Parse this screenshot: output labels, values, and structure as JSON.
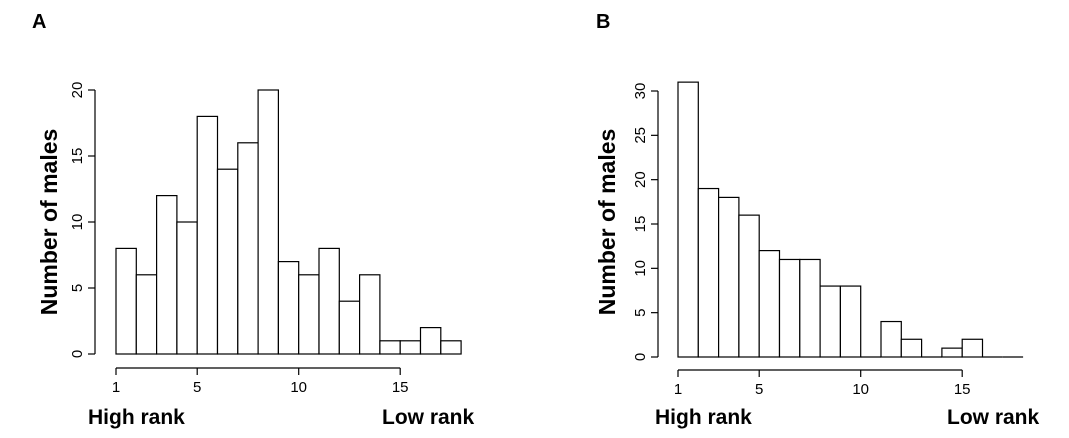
{
  "chart_data": [
    {
      "type": "bar",
      "panel_label": "A",
      "ylabel": "Number of males",
      "x_start_label": "High rank",
      "x_end_label": "Low rank",
      "x": [
        1,
        2,
        3,
        4,
        5,
        6,
        7,
        8,
        9,
        10,
        11,
        12,
        13,
        14,
        15,
        16,
        17
      ],
      "values": [
        8,
        6,
        12,
        10,
        18,
        14,
        16,
        20,
        7,
        6,
        8,
        4,
        6,
        1,
        1,
        2,
        1
      ],
      "xlim": [
        1,
        18
      ],
      "ylim": [
        0,
        20
      ],
      "xticks": [
        1,
        5,
        10,
        15
      ],
      "yticks": [
        0,
        5,
        10,
        15,
        20
      ],
      "grid": false
    },
    {
      "type": "bar",
      "panel_label": "B",
      "ylabel": "Number of males",
      "x_start_label": "High rank",
      "x_end_label": "Low rank",
      "x": [
        1,
        2,
        3,
        4,
        5,
        6,
        7,
        8,
        9,
        10,
        11,
        12,
        13,
        14,
        15,
        16,
        17
      ],
      "values": [
        31,
        19,
        18,
        16,
        12,
        11,
        11,
        8,
        8,
        0,
        4,
        2,
        0,
        1,
        2,
        0,
        0
      ],
      "xlim": [
        1,
        18
      ],
      "ylim": [
        0,
        30
      ],
      "xticks": [
        1,
        5,
        10,
        15
      ],
      "yticks": [
        0,
        5,
        10,
        15,
        20,
        25,
        30
      ],
      "grid": false
    }
  ]
}
